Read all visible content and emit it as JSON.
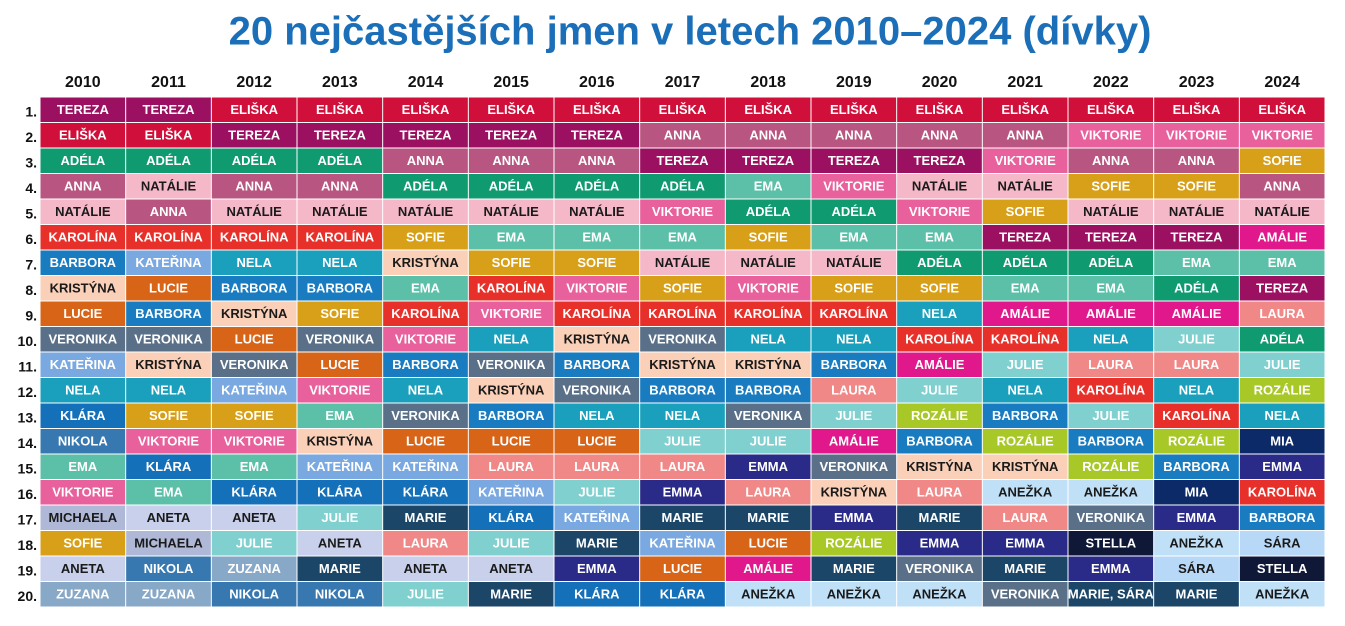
{
  "header": {
    "title": "20 nejčastějších jmen v letech 2010–2024 (dívky)"
  },
  "table": {
    "columns": [
      "2010",
      "2011",
      "2012",
      "2013",
      "2014",
      "2015",
      "2016",
      "2017",
      "2018",
      "2019",
      "2020",
      "2021",
      "2022",
      "2023",
      "2024"
    ],
    "ranks": [
      "1.",
      "2.",
      "3.",
      "4.",
      "5.",
      "6.",
      "7.",
      "8.",
      "9.",
      "10.",
      "11.",
      "12.",
      "13.",
      "14.",
      "15.",
      "16.",
      "17.",
      "18.",
      "19.",
      "20."
    ],
    "rows": [
      [
        "TEREZA",
        "TEREZA",
        "ELIŠKA",
        "ELIŠKA",
        "ELIŠKA",
        "ELIŠKA",
        "ELIŠKA",
        "ELIŠKA",
        "ELIŠKA",
        "ELIŠKA",
        "ELIŠKA",
        "ELIŠKA",
        "ELIŠKA",
        "ELIŠKA",
        "ELIŠKA"
      ],
      [
        "ELIŠKA",
        "ELIŠKA",
        "TEREZA",
        "TEREZA",
        "TEREZA",
        "TEREZA",
        "TEREZA",
        "ANNA",
        "ANNA",
        "ANNA",
        "ANNA",
        "ANNA",
        "VIKTORIE",
        "VIKTORIE",
        "VIKTORIE"
      ],
      [
        "ADÉLA",
        "ADÉLA",
        "ADÉLA",
        "ADÉLA",
        "ANNA",
        "ANNA",
        "ANNA",
        "TEREZA",
        "TEREZA",
        "TEREZA",
        "TEREZA",
        "VIKTORIE",
        "ANNA",
        "ANNA",
        "SOFIE"
      ],
      [
        "ANNA",
        "NATÁLIE",
        "ANNA",
        "ANNA",
        "ADÉLA",
        "ADÉLA",
        "ADÉLA",
        "ADÉLA",
        "EMA",
        "VIKTORIE",
        "NATÁLIE",
        "NATÁLIE",
        "SOFIE",
        "SOFIE",
        "ANNA"
      ],
      [
        "NATÁLIE",
        "ANNA",
        "NATÁLIE",
        "NATÁLIE",
        "NATÁLIE",
        "NATÁLIE",
        "NATÁLIE",
        "VIKTORIE",
        "ADÉLA",
        "ADÉLA",
        "VIKTORIE",
        "SOFIE",
        "NATÁLIE",
        "NATÁLIE",
        "NATÁLIE"
      ],
      [
        "KAROLÍNA",
        "KAROLÍNA",
        "KAROLÍNA",
        "KAROLÍNA",
        "SOFIE",
        "EMA",
        "EMA",
        "EMA",
        "SOFIE",
        "EMA",
        "EMA",
        "TEREZA",
        "TEREZA",
        "TEREZA",
        "AMÁLIE"
      ],
      [
        "BARBORA",
        "KATEŘINA",
        "NELA",
        "NELA",
        "KRISTÝNA",
        "SOFIE",
        "SOFIE",
        "NATÁLIE",
        "NATÁLIE",
        "NATÁLIE",
        "ADÉLA",
        "ADÉLA",
        "ADÉLA",
        "EMA",
        "EMA"
      ],
      [
        "KRISTÝNA",
        "LUCIE",
        "BARBORA",
        "BARBORA",
        "EMA",
        "KAROLÍNA",
        "VIKTORIE",
        "SOFIE",
        "VIKTORIE",
        "SOFIE",
        "SOFIE",
        "EMA",
        "EMA",
        "ADÉLA",
        "TEREZA"
      ],
      [
        "LUCIE",
        "BARBORA",
        "KRISTÝNA",
        "SOFIE",
        "KAROLÍNA",
        "VIKTORIE",
        "KAROLÍNA",
        "KAROLÍNA",
        "KAROLÍNA",
        "KAROLÍNA",
        "NELA",
        "AMÁLIE",
        "AMÁLIE",
        "AMÁLIE",
        "LAURA"
      ],
      [
        "VERONIKA",
        "VERONIKA",
        "LUCIE",
        "VERONIKA",
        "VIKTORIE",
        "NELA",
        "KRISTÝNA",
        "VERONIKA",
        "NELA",
        "NELA",
        "KAROLÍNA",
        "KAROLÍNA",
        "NELA",
        "JULIE",
        "ADÉLA"
      ],
      [
        "KATEŘINA",
        "KRISTÝNA",
        "VERONIKA",
        "LUCIE",
        "BARBORA",
        "VERONIKA",
        "BARBORA",
        "KRISTÝNA",
        "KRISTÝNA",
        "BARBORA",
        "AMÁLIE",
        "JULIE",
        "LAURA",
        "LAURA",
        "JULIE"
      ],
      [
        "NELA",
        "NELA",
        "KATEŘINA",
        "VIKTORIE",
        "NELA",
        "KRISTÝNA",
        "VERONIKA",
        "BARBORA",
        "BARBORA",
        "LAURA",
        "JULIE",
        "NELA",
        "KAROLÍNA",
        "NELA",
        "ROZÁLIE"
      ],
      [
        "KLÁRA",
        "SOFIE",
        "SOFIE",
        "EMA",
        "VERONIKA",
        "BARBORA",
        "NELA",
        "NELA",
        "VERONIKA",
        "JULIE",
        "ROZÁLIE",
        "BARBORA",
        "JULIE",
        "KAROLÍNA",
        "NELA"
      ],
      [
        "NIKOLA",
        "VIKTORIE",
        "VIKTORIE",
        "KRISTÝNA",
        "LUCIE",
        "LUCIE",
        "LUCIE",
        "JULIE",
        "JULIE",
        "AMÁLIE",
        "BARBORA",
        "ROZÁLIE",
        "BARBORA",
        "ROZÁLIE",
        "MIA"
      ],
      [
        "EMA",
        "KLÁRA",
        "EMA",
        "KATEŘINA",
        "KATEŘINA",
        "LAURA",
        "LAURA",
        "LAURA",
        "EMMA",
        "VERONIKA",
        "KRISTÝNA",
        "KRISTÝNA",
        "ROZÁLIE",
        "BARBORA",
        "EMMA"
      ],
      [
        "VIKTORIE",
        "EMA",
        "KLÁRA",
        "KLÁRA",
        "KLÁRA",
        "KATEŘINA",
        "JULIE",
        "EMMA",
        "LAURA",
        "KRISTÝNA",
        "LAURA",
        "ANEŽKA",
        "ANEŽKA",
        "MIA",
        "KAROLÍNA"
      ],
      [
        "MICHAELA",
        "ANETA",
        "ANETA",
        "JULIE",
        "MARIE",
        "KLÁRA",
        "KATEŘINA",
        "MARIE",
        "MARIE",
        "EMMA",
        "MARIE",
        "LAURA",
        "VERONIKA",
        "EMMA",
        "BARBORA"
      ],
      [
        "SOFIE",
        "MICHAELA",
        "JULIE",
        "ANETA",
        "LAURA",
        "JULIE",
        "MARIE",
        "KATEŘINA",
        "LUCIE",
        "ROZÁLIE",
        "EMMA",
        "EMMA",
        "STELLA",
        "ANEŽKA",
        "SÁRA"
      ],
      [
        "ANETA",
        "NIKOLA",
        "ZUZANA",
        "MARIE",
        "ANETA",
        "ANETA",
        "EMMA",
        "LUCIE",
        "AMÁLIE",
        "MARIE",
        "VERONIKA",
        "MARIE",
        "EMMA",
        "SÁRA",
        "STELLA"
      ],
      [
        "ZUZANA",
        "ZUZANA",
        "NIKOLA",
        "NIKOLA",
        "JULIE",
        "MARIE",
        "KLÁRA",
        "KLÁRA",
        "ANEŽKA",
        "ANEŽKA",
        "ANEŽKA",
        "VERONIKA",
        "MARIE, SÁRA",
        "MARIE",
        "ANEŽKA"
      ]
    ],
    "name_colors": {
      "TEREZA": {
        "fill": "#9b1060",
        "text": "#ffffff"
      },
      "ELIŠKA": {
        "fill": "#d0103a",
        "text": "#ffffff"
      },
      "ADÉLA": {
        "fill": "#0f9a70",
        "text": "#ffffff"
      },
      "ANNA": {
        "fill": "#b85580",
        "text": "#ffffff"
      },
      "NATÁLIE": {
        "fill": "#f5b8c8",
        "text": "#1a1a1a"
      },
      "KAROLÍNA": {
        "fill": "#e8302a",
        "text": "#ffffff"
      },
      "BARBORA": {
        "fill": "#1a7cc0",
        "text": "#ffffff"
      },
      "KRISTÝNA": {
        "fill": "#fbd0b8",
        "text": "#1a1a1a"
      },
      "LUCIE": {
        "fill": "#d86418",
        "text": "#ffffff"
      },
      "VERONIKA": {
        "fill": "#5a7088",
        "text": "#ffffff"
      },
      "KATEŘINA": {
        "fill": "#7aa8e0",
        "text": "#ffffff"
      },
      "NELA": {
        "fill": "#1aa0bc",
        "text": "#ffffff"
      },
      "KLÁRA": {
        "fill": "#1470b8",
        "text": "#ffffff"
      },
      "NIKOLA": {
        "fill": "#3878b0",
        "text": "#ffffff"
      },
      "EMA": {
        "fill": "#5cc0a8",
        "text": "#ffffff"
      },
      "VIKTORIE": {
        "fill": "#e8609c",
        "text": "#ffffff"
      },
      "MICHAELA": {
        "fill": "#b0b8d8",
        "text": "#1a1a1a"
      },
      "SOFIE": {
        "fill": "#d8a018",
        "text": "#ffffff"
      },
      "ANETA": {
        "fill": "#c8d0ec",
        "text": "#1a1a1a"
      },
      "ZUZANA": {
        "fill": "#88a8c8",
        "text": "#ffffff"
      },
      "JULIE": {
        "fill": "#80d0d0",
        "text": "#ffffff"
      },
      "MARIE": {
        "fill": "#1c4668",
        "text": "#ffffff"
      },
      "LAURA": {
        "fill": "#f08888",
        "text": "#ffffff"
      },
      "EMMA": {
        "fill": "#2a2a88",
        "text": "#ffffff"
      },
      "AMÁLIE": {
        "fill": "#e0188c",
        "text": "#ffffff"
      },
      "ROZÁLIE": {
        "fill": "#a8c828",
        "text": "#ffffff"
      },
      "ANEŽKA": {
        "fill": "#c0e0f8",
        "text": "#1a1a1a"
      },
      "STELLA": {
        "fill": "#101838",
        "text": "#ffffff"
      },
      "MIA": {
        "fill": "#0c2a68",
        "text": "#ffffff"
      },
      "SÁRA": {
        "fill": "#b8d8f8",
        "text": "#1a1a1a"
      },
      "MARIE, SÁRA": {
        "fill": "#1c4668",
        "text": "#ffffff"
      }
    }
  }
}
